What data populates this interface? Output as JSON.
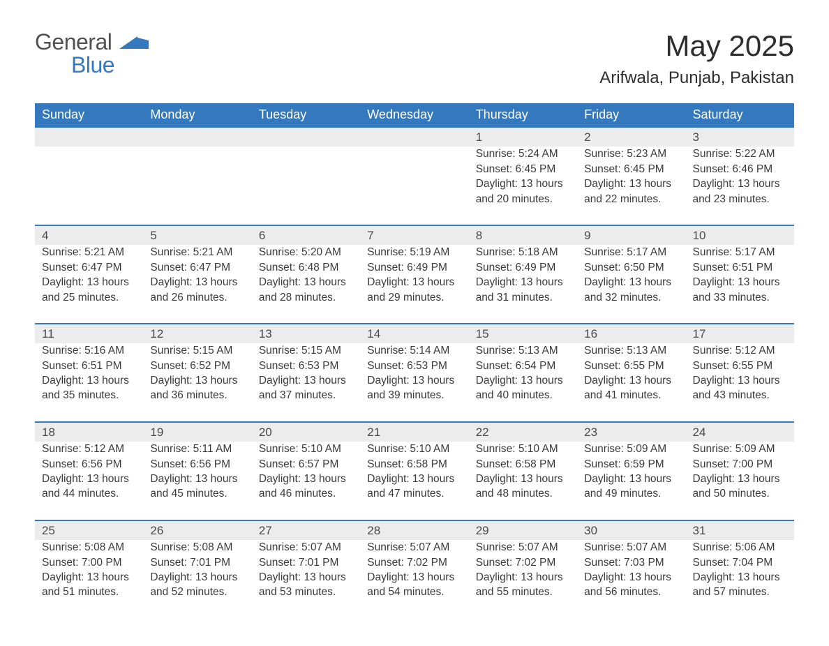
{
  "logo": {
    "text1": "General",
    "text2": "Blue"
  },
  "title": {
    "month": "May 2025",
    "location": "Arifwala, Punjab, Pakistan"
  },
  "colors": {
    "header_bg": "#3478bd",
    "header_text": "#ffffff",
    "daynum_bg": "#ececec",
    "border_top": "#3478bd",
    "body_text": "#3b3b3b",
    "logo_gray": "#515151",
    "logo_blue": "#3478bd",
    "page_bg": "#ffffff"
  },
  "day_headers": [
    "Sunday",
    "Monday",
    "Tuesday",
    "Wednesday",
    "Thursday",
    "Friday",
    "Saturday"
  ],
  "weeks": [
    [
      null,
      null,
      null,
      null,
      {
        "n": "1",
        "sunrise": "5:24 AM",
        "sunset": "6:45 PM",
        "daylight": "13 hours and 20 minutes."
      },
      {
        "n": "2",
        "sunrise": "5:23 AM",
        "sunset": "6:45 PM",
        "daylight": "13 hours and 22 minutes."
      },
      {
        "n": "3",
        "sunrise": "5:22 AM",
        "sunset": "6:46 PM",
        "daylight": "13 hours and 23 minutes."
      }
    ],
    [
      {
        "n": "4",
        "sunrise": "5:21 AM",
        "sunset": "6:47 PM",
        "daylight": "13 hours and 25 minutes."
      },
      {
        "n": "5",
        "sunrise": "5:21 AM",
        "sunset": "6:47 PM",
        "daylight": "13 hours and 26 minutes."
      },
      {
        "n": "6",
        "sunrise": "5:20 AM",
        "sunset": "6:48 PM",
        "daylight": "13 hours and 28 minutes."
      },
      {
        "n": "7",
        "sunrise": "5:19 AM",
        "sunset": "6:49 PM",
        "daylight": "13 hours and 29 minutes."
      },
      {
        "n": "8",
        "sunrise": "5:18 AM",
        "sunset": "6:49 PM",
        "daylight": "13 hours and 31 minutes."
      },
      {
        "n": "9",
        "sunrise": "5:17 AM",
        "sunset": "6:50 PM",
        "daylight": "13 hours and 32 minutes."
      },
      {
        "n": "10",
        "sunrise": "5:17 AM",
        "sunset": "6:51 PM",
        "daylight": "13 hours and 33 minutes."
      }
    ],
    [
      {
        "n": "11",
        "sunrise": "5:16 AM",
        "sunset": "6:51 PM",
        "daylight": "13 hours and 35 minutes."
      },
      {
        "n": "12",
        "sunrise": "5:15 AM",
        "sunset": "6:52 PM",
        "daylight": "13 hours and 36 minutes."
      },
      {
        "n": "13",
        "sunrise": "5:15 AM",
        "sunset": "6:53 PM",
        "daylight": "13 hours and 37 minutes."
      },
      {
        "n": "14",
        "sunrise": "5:14 AM",
        "sunset": "6:53 PM",
        "daylight": "13 hours and 39 minutes."
      },
      {
        "n": "15",
        "sunrise": "5:13 AM",
        "sunset": "6:54 PM",
        "daylight": "13 hours and 40 minutes."
      },
      {
        "n": "16",
        "sunrise": "5:13 AM",
        "sunset": "6:55 PM",
        "daylight": "13 hours and 41 minutes."
      },
      {
        "n": "17",
        "sunrise": "5:12 AM",
        "sunset": "6:55 PM",
        "daylight": "13 hours and 43 minutes."
      }
    ],
    [
      {
        "n": "18",
        "sunrise": "5:12 AM",
        "sunset": "6:56 PM",
        "daylight": "13 hours and 44 minutes."
      },
      {
        "n": "19",
        "sunrise": "5:11 AM",
        "sunset": "6:56 PM",
        "daylight": "13 hours and 45 minutes."
      },
      {
        "n": "20",
        "sunrise": "5:10 AM",
        "sunset": "6:57 PM",
        "daylight": "13 hours and 46 minutes."
      },
      {
        "n": "21",
        "sunrise": "5:10 AM",
        "sunset": "6:58 PM",
        "daylight": "13 hours and 47 minutes."
      },
      {
        "n": "22",
        "sunrise": "5:10 AM",
        "sunset": "6:58 PM",
        "daylight": "13 hours and 48 minutes."
      },
      {
        "n": "23",
        "sunrise": "5:09 AM",
        "sunset": "6:59 PM",
        "daylight": "13 hours and 49 minutes."
      },
      {
        "n": "24",
        "sunrise": "5:09 AM",
        "sunset": "7:00 PM",
        "daylight": "13 hours and 50 minutes."
      }
    ],
    [
      {
        "n": "25",
        "sunrise": "5:08 AM",
        "sunset": "7:00 PM",
        "daylight": "13 hours and 51 minutes."
      },
      {
        "n": "26",
        "sunrise": "5:08 AM",
        "sunset": "7:01 PM",
        "daylight": "13 hours and 52 minutes."
      },
      {
        "n": "27",
        "sunrise": "5:07 AM",
        "sunset": "7:01 PM",
        "daylight": "13 hours and 53 minutes."
      },
      {
        "n": "28",
        "sunrise": "5:07 AM",
        "sunset": "7:02 PM",
        "daylight": "13 hours and 54 minutes."
      },
      {
        "n": "29",
        "sunrise": "5:07 AM",
        "sunset": "7:02 PM",
        "daylight": "13 hours and 55 minutes."
      },
      {
        "n": "30",
        "sunrise": "5:07 AM",
        "sunset": "7:03 PM",
        "daylight": "13 hours and 56 minutes."
      },
      {
        "n": "31",
        "sunrise": "5:06 AM",
        "sunset": "7:04 PM",
        "daylight": "13 hours and 57 minutes."
      }
    ]
  ],
  "labels": {
    "sunrise": "Sunrise: ",
    "sunset": "Sunset: ",
    "daylight": "Daylight: "
  }
}
